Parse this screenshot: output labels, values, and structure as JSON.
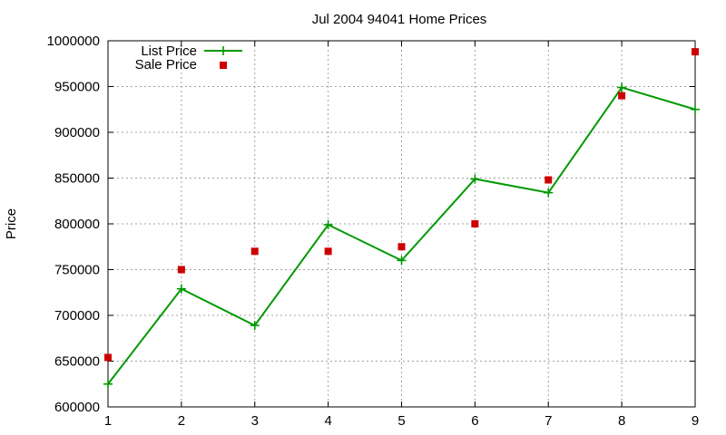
{
  "chart_data": {
    "type": "line",
    "title": "Jul 2004 94041 Home Prices",
    "xlabel": "",
    "ylabel": "Price",
    "x": [
      1,
      2,
      3,
      4,
      5,
      6,
      7,
      8,
      9
    ],
    "xlim": [
      1,
      9
    ],
    "ylim": [
      600000,
      1000000
    ],
    "x_ticks": [
      "1",
      "2",
      "3",
      "4",
      "5",
      "6",
      "7",
      "8",
      "9"
    ],
    "y_ticks": [
      "600000",
      "650000",
      "700000",
      "750000",
      "800000",
      "850000",
      "900000",
      "950000",
      "1000000"
    ],
    "grid": true,
    "legend_position": "top-left",
    "series": [
      {
        "name": "List Price",
        "style": "line-with-plus-markers",
        "color": "#009900",
        "values": [
          625000,
          729000,
          689000,
          799000,
          760000,
          849000,
          834000,
          949000,
          925000
        ]
      },
      {
        "name": "Sale Price",
        "style": "square-markers",
        "color": "#cc0000",
        "values": [
          654000,
          750000,
          770000,
          770000,
          775000,
          800000,
          848000,
          940000,
          988000
        ]
      }
    ]
  }
}
